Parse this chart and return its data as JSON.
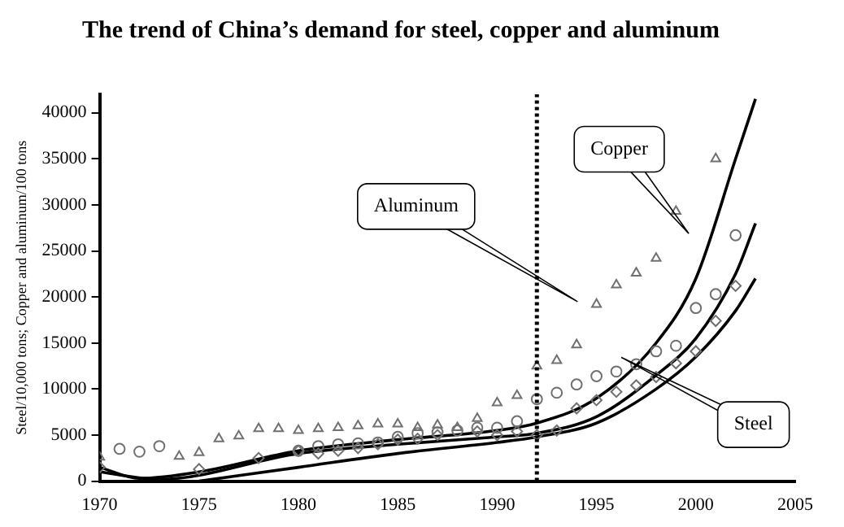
{
  "chart_data": {
    "type": "scatter",
    "title": "The trend of China’s demand for steel, copper and aluminum",
    "ylabel": "Steel/10,000 tons; Copper and aluminum/100 tons",
    "xlim": [
      1970,
      2005
    ],
    "xticks": [
      1970,
      1975,
      1980,
      1985,
      1990,
      1995,
      2000,
      2005
    ],
    "ylim": [
      0,
      42000
    ],
    "yticks": [
      0,
      5000,
      10000,
      15000,
      20000,
      25000,
      30000,
      35000,
      40000
    ],
    "grid": false,
    "legend": false,
    "series": [
      {
        "marker": "triangle",
        "color": "#707070",
        "x": [
          1970,
          1974,
          1975,
          1976,
          1977,
          1978,
          1979,
          1980,
          1981,
          1982,
          1983,
          1984,
          1985,
          1986,
          1987,
          1988,
          1989,
          1990,
          1991,
          1992,
          1993,
          1994,
          1995,
          1996,
          1997,
          1998,
          1999,
          2001
        ],
        "values": [
          2600,
          2700,
          3100,
          4600,
          4900,
          5700,
          5700,
          5500,
          5700,
          5800,
          6000,
          6200,
          6200,
          5800,
          6100,
          5800,
          6800,
          8500,
          9300,
          12500,
          13100,
          14800,
          19200,
          21300,
          22600,
          24200,
          29300,
          35000
        ]
      },
      {
        "marker": "circle",
        "color": "#707070",
        "x": [
          1971,
          1972,
          1973,
          1980,
          1981,
          1982,
          1983,
          1984,
          1985,
          1986,
          1987,
          1988,
          1989,
          1990,
          1991,
          1992,
          1993,
          1994,
          1995,
          1996,
          1997,
          1998,
          1999,
          2000,
          2001,
          2002
        ],
        "values": [
          3500,
          3200,
          3800,
          3300,
          3800,
          4000,
          4100,
          4200,
          4800,
          5200,
          5300,
          5500,
          5800,
          5800,
          6500,
          8900,
          9600,
          10500,
          11400,
          11900,
          12700,
          14100,
          14700,
          18800,
          20300,
          26700
        ]
      },
      {
        "marker": "diamond",
        "color": "#707070",
        "x": [
          1970,
          1975,
          1978,
          1980,
          1981,
          1982,
          1983,
          1984,
          1985,
          1986,
          1987,
          1988,
          1989,
          1990,
          1991,
          1992,
          1993,
          1994,
          1995,
          1996,
          1997,
          1998,
          1999,
          2000,
          2001,
          2002
        ],
        "values": [
          1500,
          1300,
          2500,
          3300,
          3000,
          3300,
          3600,
          4000,
          4500,
          4600,
          5000,
          null,
          5400,
          5000,
          5400,
          5000,
          5500,
          7900,
          8800,
          9700,
          10400,
          11300,
          12800,
          14100,
          17400,
          21200
        ]
      },
      {
        "type": "line",
        "marker": "none",
        "line_style": "solid",
        "color": "#000000",
        "x": [
          1970,
          1972,
          1975,
          1980,
          1985,
          1990,
          1992,
          1995,
          1998,
          2000,
          2002,
          2003
        ],
        "values": [
          1500,
          300,
          1000,
          3300,
          4500,
          5500,
          6300,
          9000,
          15000,
          22000,
          35000,
          41500
        ]
      },
      {
        "type": "line",
        "marker": "none",
        "line_style": "solid",
        "color": "#000000",
        "x": [
          1970,
          1973,
          1980,
          1985,
          1990,
          1992,
          1995,
          1998,
          2000,
          2002,
          2003
        ],
        "values": [
          1000,
          200,
          3000,
          4000,
          4800,
          5200,
          7000,
          11500,
          15500,
          22500,
          28000
        ]
      },
      {
        "type": "line",
        "marker": "none",
        "line_style": "solid",
        "color": "#000000",
        "x": [
          1975,
          1980,
          1985,
          1990,
          1992,
          1995,
          1998,
          2000,
          2002,
          2003
        ],
        "values": [
          0,
          1500,
          3000,
          4200,
          4800,
          6300,
          10000,
          13500,
          18500,
          22000
        ]
      }
    ],
    "ref_lines": [
      {
        "axis": "x",
        "value": 1992,
        "line_style": "dotted",
        "color": "#000000"
      }
    ],
    "annotations": [
      "Aluminum",
      "Copper",
      "Steel"
    ]
  }
}
